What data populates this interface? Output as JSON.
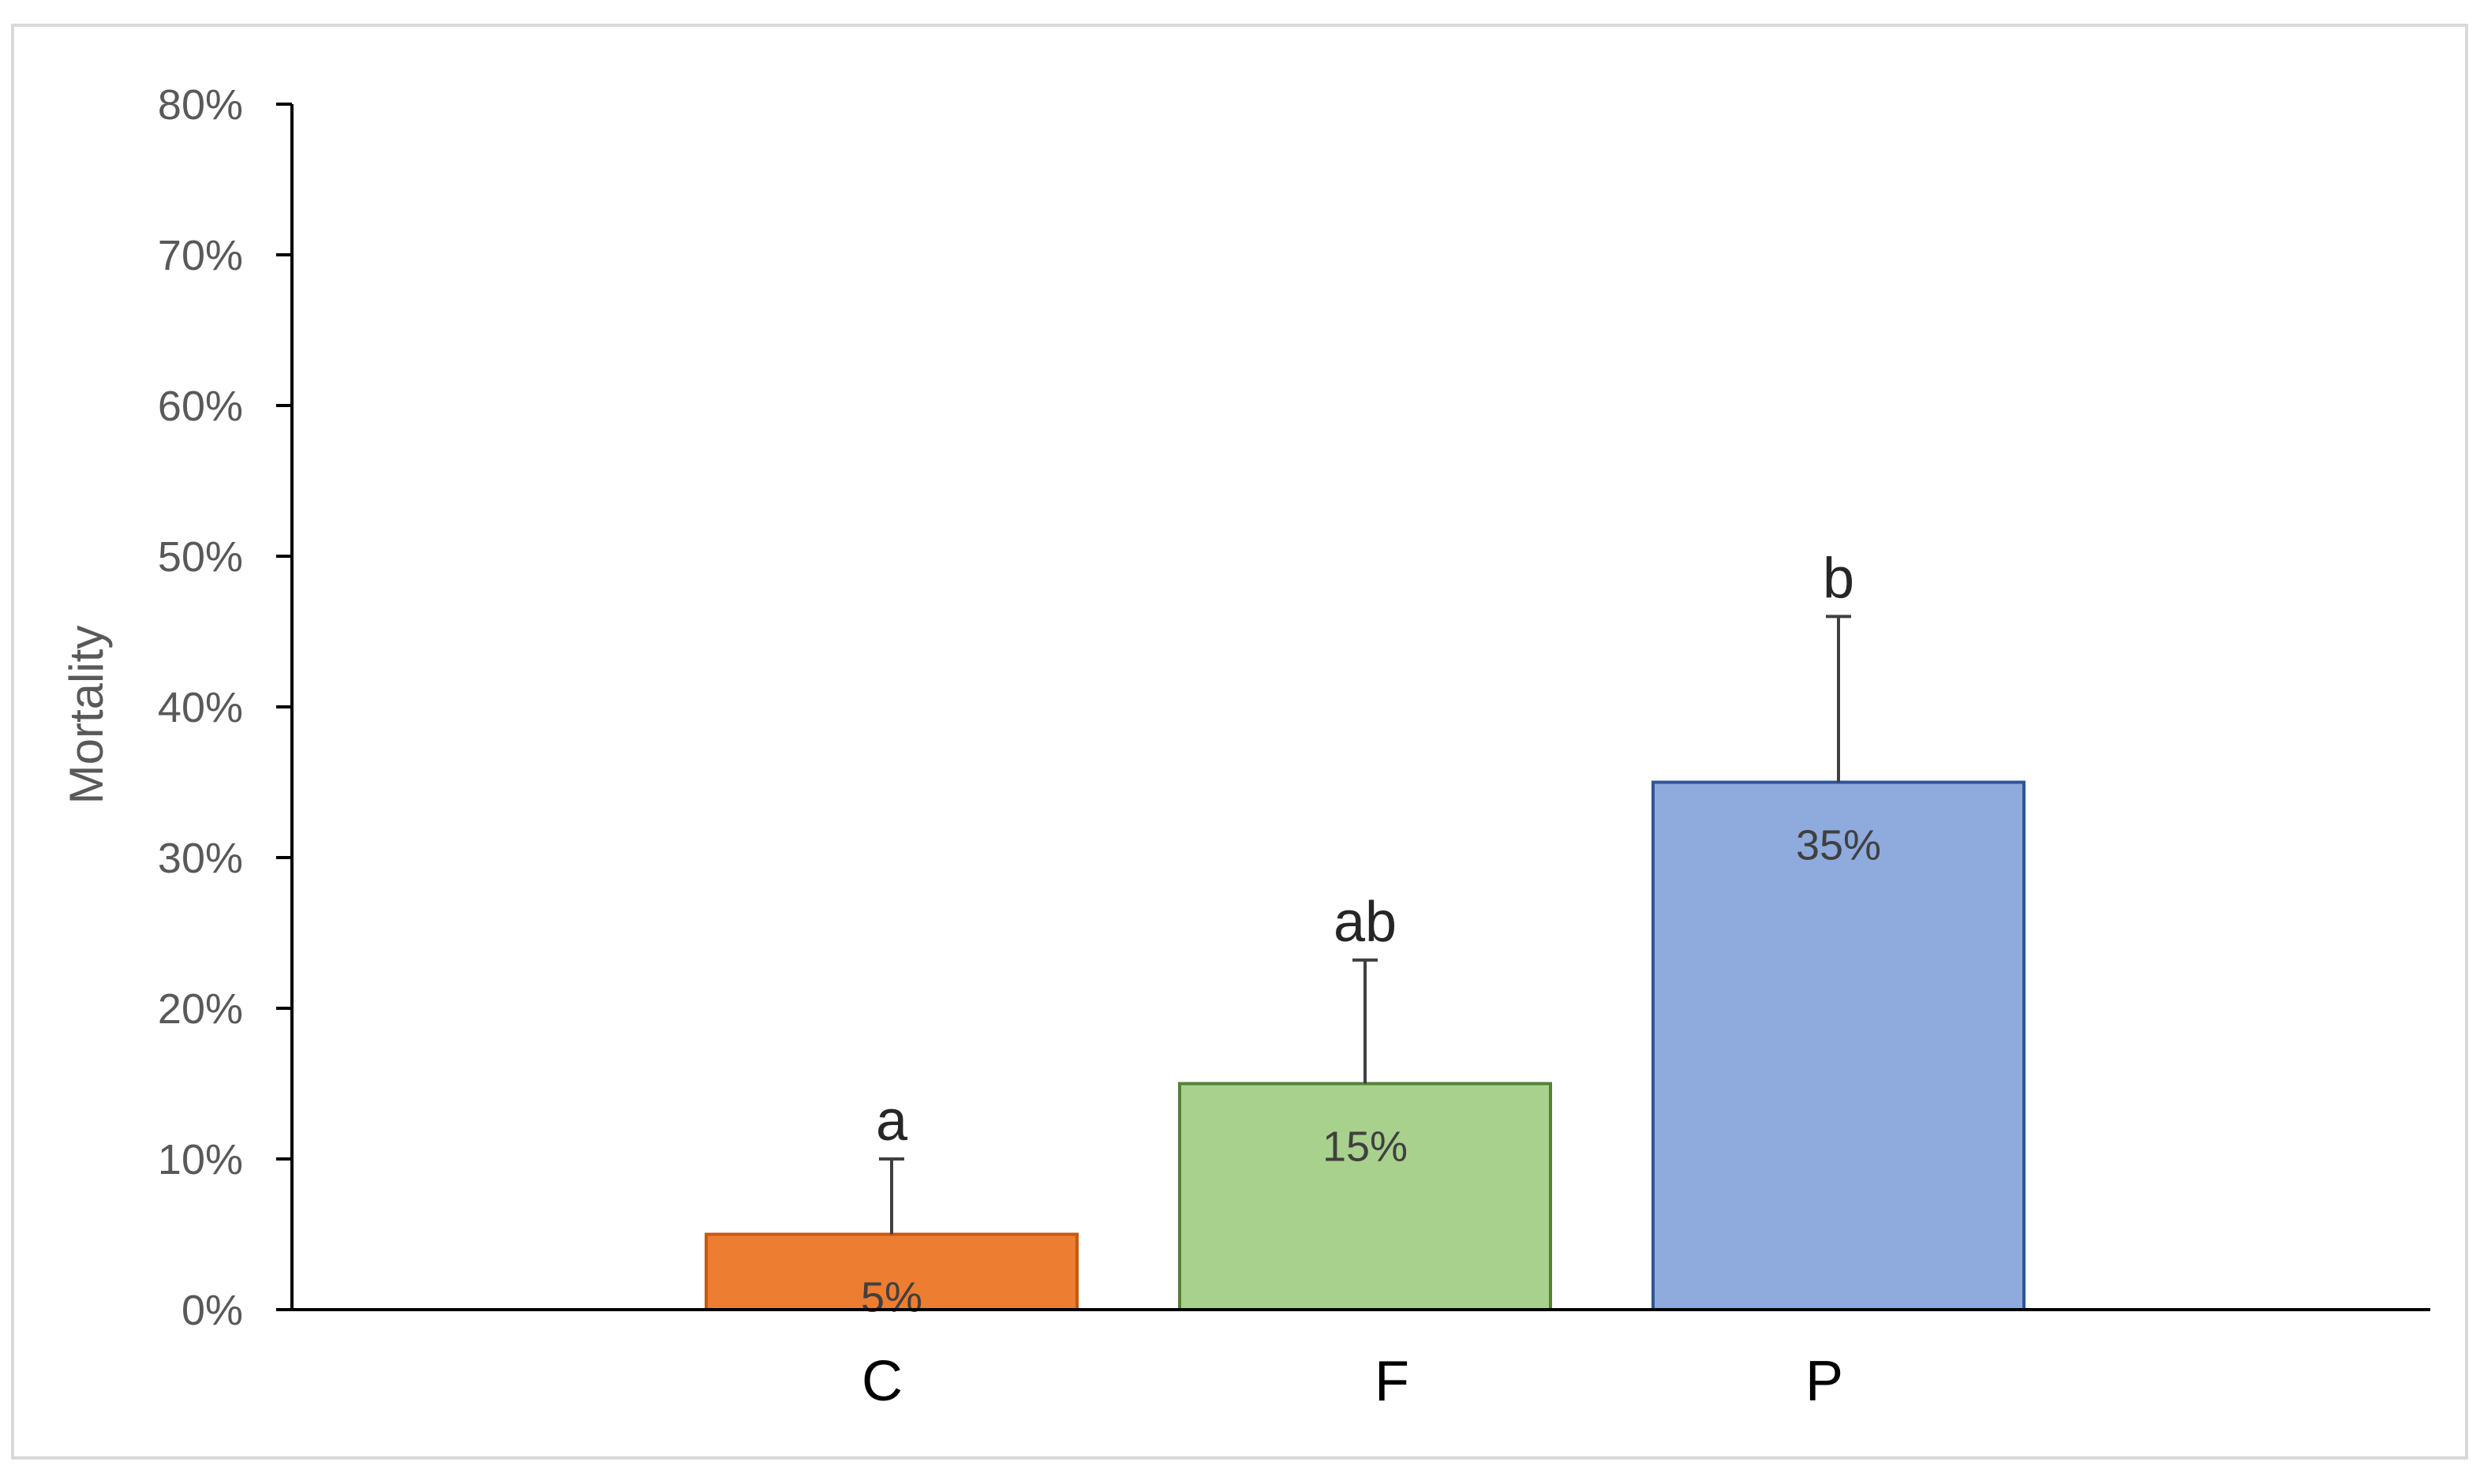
{
  "chart_data": {
    "type": "bar",
    "title": "",
    "xlabel": "",
    "ylabel": "Mortality",
    "categories": [
      "C",
      "F",
      "P"
    ],
    "values": [
      5,
      15,
      35
    ],
    "value_labels": [
      "5%",
      "15%",
      "35%"
    ],
    "error_upper": [
      5,
      8.2,
      11
    ],
    "significance_letters": [
      "a",
      "ab",
      "b"
    ],
    "bar_colors": [
      "#ED7D31",
      "#A9D18E",
      "#8FAADC"
    ],
    "bar_border_colors": [
      "#C55A11",
      "#548235",
      "#2F5597"
    ],
    "ylim": [
      0,
      80
    ],
    "yticks": [
      0,
      10,
      20,
      30,
      40,
      50,
      60,
      70,
      80
    ],
    "ytick_labels": [
      "0%",
      "10%",
      "20%",
      "30%",
      "40%",
      "50%",
      "60%",
      "70%",
      "80%"
    ],
    "grid": false,
    "legend": "none"
  }
}
